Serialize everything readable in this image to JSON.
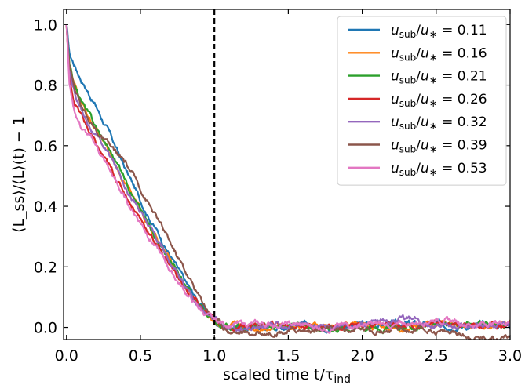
{
  "chart_data": {
    "type": "line",
    "xlabel": "scaled time t/τ",
    "xlabel_sub": "ind",
    "ylabel": "⟨L_ss⟩/⟨L⟩(t) − 1",
    "xlim": [
      -0.02,
      3.0
    ],
    "ylim": [
      -0.04,
      1.05
    ],
    "xticks": [
      "0.0",
      "0.5",
      "1.0",
      "1.5",
      "2.0",
      "2.5",
      "3.0"
    ],
    "yticks": [
      "0.0",
      "0.2",
      "0.4",
      "0.6",
      "0.8",
      "1.0"
    ],
    "vline": {
      "x": 1.0,
      "style": "dashed",
      "color": "#000000"
    },
    "legend_position": "upper-right",
    "series": [
      {
        "name": "u_sub/u* = 0.11",
        "value": "0.11",
        "color": "#1f77b4",
        "x": [
          0,
          0.02,
          0.05,
          0.1,
          0.2,
          0.3,
          0.4,
          0.5,
          0.6,
          0.7,
          0.8,
          0.9,
          1.0,
          1.1,
          1.25,
          1.5,
          1.75,
          2.0,
          2.25,
          2.5,
          2.75,
          3.0
        ],
        "y": [
          1.0,
          0.9,
          0.87,
          0.82,
          0.73,
          0.63,
          0.52,
          0.42,
          0.33,
          0.24,
          0.15,
          0.08,
          0.02,
          0.0,
          0.0,
          0.005,
          0.005,
          0.01,
          0.01,
          0.01,
          0.005,
          0.01
        ]
      },
      {
        "name": "u_sub/u* = 0.16",
        "value": "0.16",
        "color": "#ff7f0e",
        "x": [
          0,
          0.02,
          0.05,
          0.1,
          0.2,
          0.3,
          0.4,
          0.5,
          0.6,
          0.7,
          0.8,
          0.9,
          1.0,
          1.1,
          1.25,
          1.5,
          1.75,
          2.0,
          2.25,
          2.5,
          2.75,
          3.0
        ],
        "y": [
          1.0,
          0.85,
          0.8,
          0.74,
          0.65,
          0.57,
          0.48,
          0.39,
          0.3,
          0.22,
          0.14,
          0.07,
          0.02,
          0.0,
          0.0,
          0.01,
          0.0,
          0.01,
          0.0,
          0.01,
          0.005,
          0.01
        ]
      },
      {
        "name": "u_sub/u* = 0.21",
        "value": "0.21",
        "color": "#2ca02c",
        "x": [
          0,
          0.02,
          0.05,
          0.1,
          0.2,
          0.3,
          0.4,
          0.5,
          0.6,
          0.7,
          0.8,
          0.9,
          1.0,
          1.1,
          1.25,
          1.5,
          1.75,
          2.0,
          2.25,
          2.5,
          2.75,
          3.0
        ],
        "y": [
          1.0,
          0.86,
          0.8,
          0.75,
          0.66,
          0.58,
          0.49,
          0.39,
          0.3,
          0.22,
          0.14,
          0.07,
          0.02,
          0.0,
          0.0,
          0.005,
          0.0,
          0.005,
          0.0,
          0.005,
          0.01,
          0.005
        ]
      },
      {
        "name": "u_sub/u* = 0.26",
        "value": "0.26",
        "color": "#d62728",
        "x": [
          0,
          0.02,
          0.05,
          0.1,
          0.2,
          0.3,
          0.4,
          0.5,
          0.6,
          0.7,
          0.8,
          0.9,
          1.0,
          1.1,
          1.25,
          1.5,
          1.75,
          2.0,
          2.25,
          2.5,
          2.75,
          3.0
        ],
        "y": [
          1.0,
          0.82,
          0.75,
          0.7,
          0.6,
          0.52,
          0.44,
          0.36,
          0.28,
          0.21,
          0.13,
          0.07,
          0.02,
          0.0,
          0.005,
          0.01,
          0.005,
          0.01,
          0.005,
          0.01,
          0.005,
          0.01
        ]
      },
      {
        "name": "u_sub/u* = 0.32",
        "value": "0.32",
        "color": "#9467bd",
        "x": [
          0,
          0.02,
          0.05,
          0.1,
          0.2,
          0.3,
          0.4,
          0.5,
          0.6,
          0.7,
          0.8,
          0.9,
          1.0,
          1.1,
          1.25,
          1.5,
          1.75,
          2.0,
          2.25,
          2.5,
          2.75,
          3.0
        ],
        "y": [
          1.0,
          0.84,
          0.78,
          0.72,
          0.63,
          0.56,
          0.47,
          0.38,
          0.3,
          0.22,
          0.14,
          0.07,
          0.02,
          -0.01,
          0.0,
          0.005,
          0.01,
          0.01,
          0.03,
          0.01,
          0.0,
          0.01
        ]
      },
      {
        "name": "u_sub/u* = 0.39",
        "value": "0.39",
        "color": "#8c564b",
        "x": [
          0,
          0.02,
          0.05,
          0.1,
          0.2,
          0.3,
          0.4,
          0.5,
          0.6,
          0.7,
          0.8,
          0.9,
          1.0,
          1.1,
          1.25,
          1.5,
          1.75,
          2.0,
          2.25,
          2.5,
          2.75,
          3.0
        ],
        "y": [
          1.0,
          0.87,
          0.8,
          0.73,
          0.65,
          0.59,
          0.54,
          0.46,
          0.37,
          0.28,
          0.19,
          0.1,
          0.03,
          -0.01,
          -0.02,
          -0.01,
          -0.01,
          -0.005,
          -0.01,
          -0.01,
          -0.03,
          -0.03
        ]
      },
      {
        "name": "u_sub/u* = 0.53",
        "value": "0.53",
        "color": "#e377c2",
        "x": [
          0,
          0.02,
          0.05,
          0.1,
          0.2,
          0.3,
          0.4,
          0.5,
          0.6,
          0.7,
          0.8,
          0.9,
          1.0,
          1.1,
          1.25,
          1.5,
          1.75,
          2.0,
          2.25,
          2.5,
          2.75,
          3.0
        ],
        "y": [
          1.0,
          0.8,
          0.72,
          0.66,
          0.6,
          0.51,
          0.42,
          0.35,
          0.27,
          0.19,
          0.12,
          0.06,
          0.02,
          0.01,
          0.01,
          0.01,
          0.0,
          0.01,
          0.005,
          0.03,
          0.01,
          0.02
        ]
      }
    ]
  }
}
